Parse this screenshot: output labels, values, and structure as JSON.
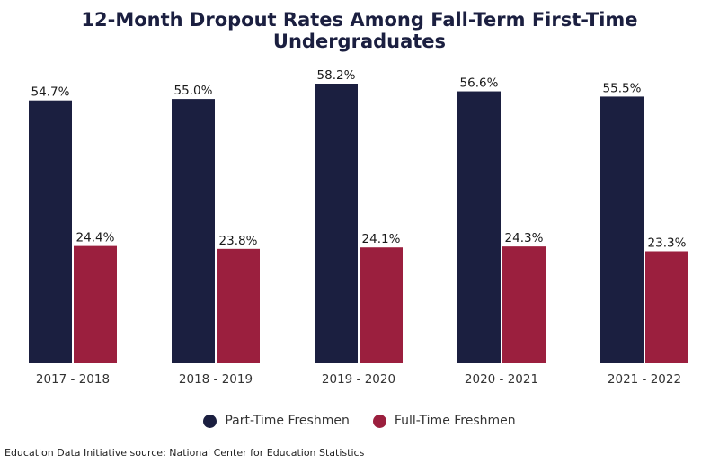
{
  "chart_data": {
    "type": "bar",
    "title": "12-Month Dropout Rates Among Fall-Term First-Time Undergraduates",
    "categories": [
      "2017 - 2018",
      "2018 - 2019",
      "2019 - 2020",
      "2020 - 2021",
      "2021 - 2022"
    ],
    "series": [
      {
        "name": "Part-Time Freshmen",
        "color": "#1b1f40",
        "values": [
          54.7,
          55.0,
          58.2,
          56.6,
          55.5
        ],
        "labels": [
          "54.7%",
          "55.0%",
          "58.2%",
          "56.6%",
          "55.5%"
        ]
      },
      {
        "name": "Full-Time Freshmen",
        "color": "#9b1f3e",
        "values": [
          24.4,
          23.8,
          24.1,
          24.3,
          23.3
        ],
        "labels": [
          "24.4%",
          "23.8%",
          "24.1%",
          "24.3%",
          "23.3%"
        ]
      }
    ],
    "xlabel": "",
    "ylabel": "",
    "ylim": [
      0,
      58.2
    ],
    "grid": false,
    "legend_position": "bottom"
  },
  "footer": {
    "source": "Education Data Initiative source: National Center for Education Statistics"
  }
}
